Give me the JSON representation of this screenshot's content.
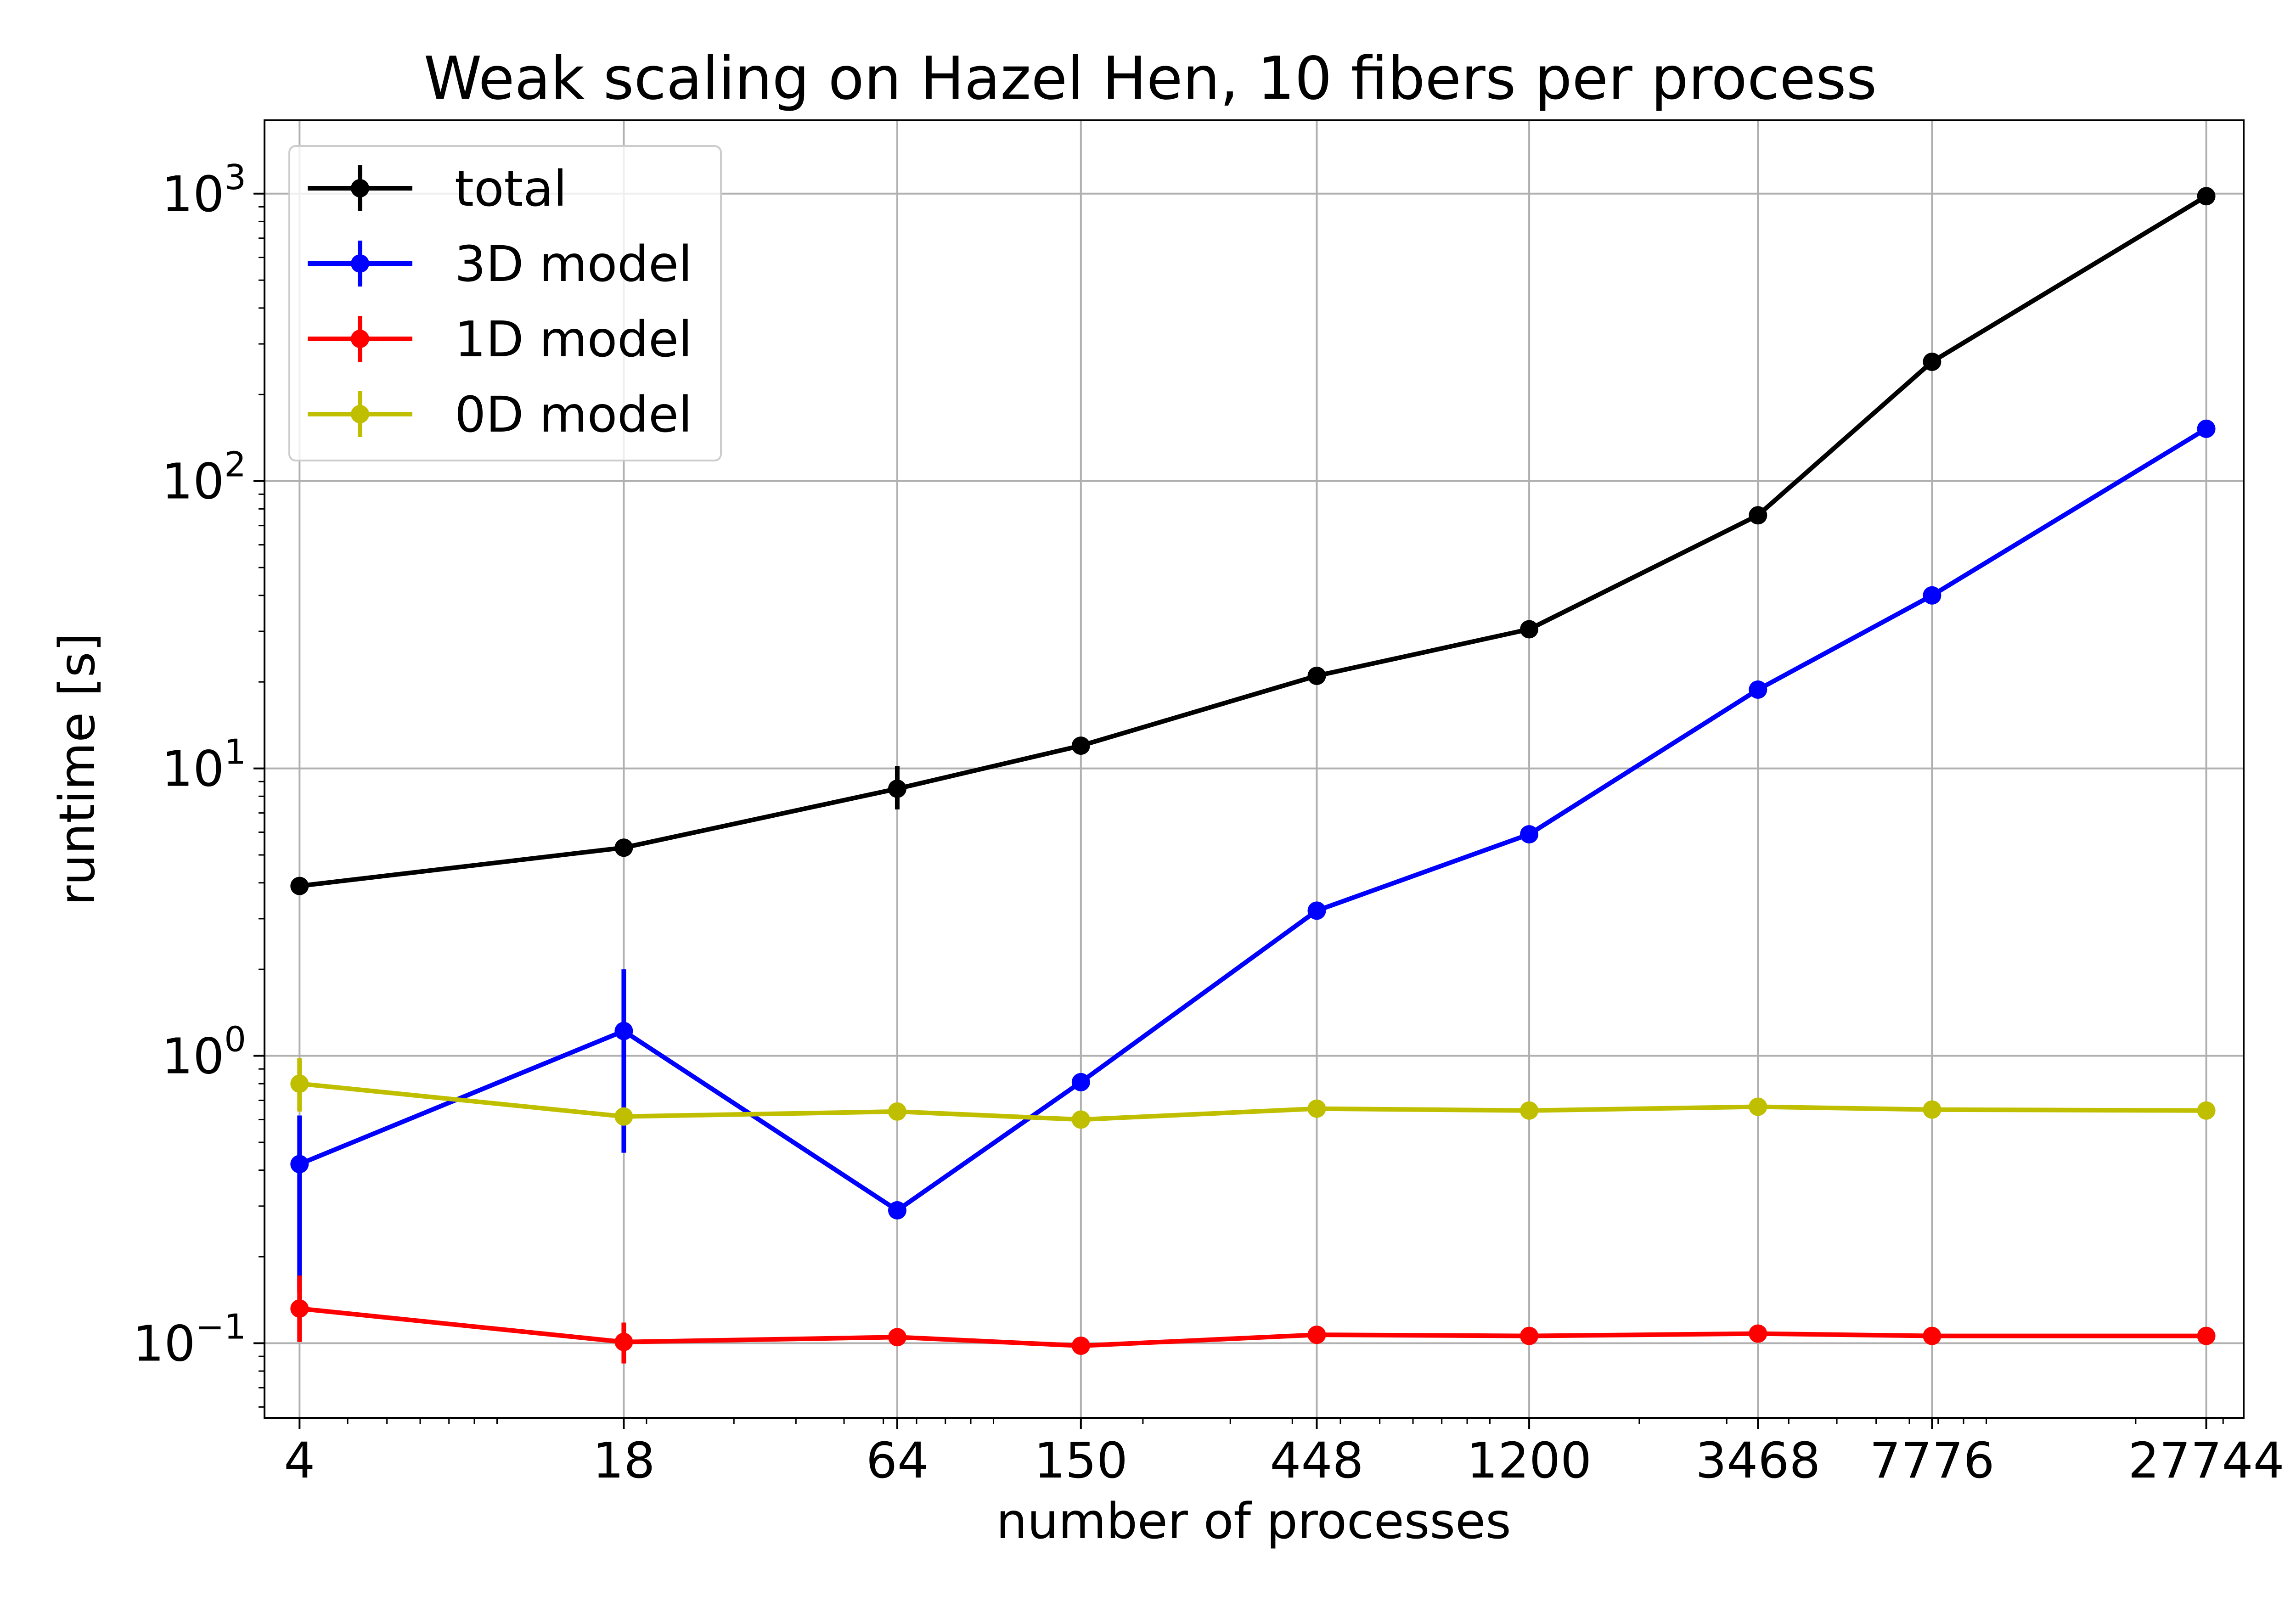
{
  "chart_data": {
    "type": "line",
    "title": "Weak scaling on Hazel Hen, 10 fibers per process",
    "xlabel": "number of processes",
    "ylabel": "runtime [s]",
    "x_scale": "log",
    "y_scale": "log",
    "xlim": [
      3.4,
      33000
    ],
    "ylim": [
      0.055,
      1800
    ],
    "grid": true,
    "legend_position": "top-left",
    "x": [
      4,
      18,
      64,
      150,
      448,
      1200,
      3468,
      7776,
      27744
    ],
    "x_tick_labels": [
      "4",
      "18",
      "64",
      "150",
      "448",
      "1200",
      "3468",
      "7776",
      "27744"
    ],
    "y_ticks": [
      {
        "base": "10",
        "exp": "−1",
        "value": 0.1
      },
      {
        "base": "10",
        "exp": "0",
        "value": 1
      },
      {
        "base": "10",
        "exp": "1",
        "value": 10
      },
      {
        "base": "10",
        "exp": "2",
        "value": 100
      },
      {
        "base": "10",
        "exp": "3",
        "value": 1000
      }
    ],
    "series": [
      {
        "name": "total",
        "color": "#000000",
        "values": [
          3.9,
          5.3,
          8.5,
          12.0,
          21.0,
          30.5,
          76.0,
          260.0,
          980.0
        ],
        "err_low": [
          3.9,
          5.3,
          7.2,
          12.0,
          21.0,
          30.5,
          76.0,
          260.0,
          980.0
        ],
        "err_high": [
          3.9,
          5.3,
          10.2,
          12.0,
          21.0,
          30.5,
          76.0,
          260.0,
          980.0
        ]
      },
      {
        "name": "3D model",
        "color": "#0000ff",
        "values": [
          0.42,
          1.22,
          0.29,
          0.81,
          3.2,
          5.9,
          18.8,
          40.0,
          152.0
        ],
        "err_low": [
          0.15,
          0.46,
          0.29,
          0.81,
          3.2,
          5.9,
          18.8,
          40.0,
          152.0
        ],
        "err_high": [
          0.62,
          2.0,
          0.29,
          0.81,
          3.2,
          5.9,
          18.8,
          40.0,
          152.0
        ]
      },
      {
        "name": "1D model",
        "color": "#ff0000",
        "values": [
          0.132,
          0.101,
          0.105,
          0.098,
          0.107,
          0.106,
          0.108,
          0.106,
          0.106
        ],
        "err_low": [
          0.101,
          0.085,
          0.105,
          0.093,
          0.107,
          0.106,
          0.108,
          0.106,
          0.106
        ],
        "err_high": [
          0.172,
          0.118,
          0.105,
          0.098,
          0.107,
          0.106,
          0.108,
          0.106,
          0.106
        ]
      },
      {
        "name": "0D model",
        "color": "#bfbf00",
        "values": [
          0.8,
          0.615,
          0.64,
          0.6,
          0.655,
          0.645,
          0.665,
          0.65,
          0.645
        ],
        "err_low": [
          0.64,
          0.615,
          0.64,
          0.6,
          0.655,
          0.645,
          0.665,
          0.65,
          0.645
        ],
        "err_high": [
          0.98,
          0.615,
          0.64,
          0.6,
          0.655,
          0.645,
          0.665,
          0.65,
          0.645
        ]
      }
    ]
  }
}
